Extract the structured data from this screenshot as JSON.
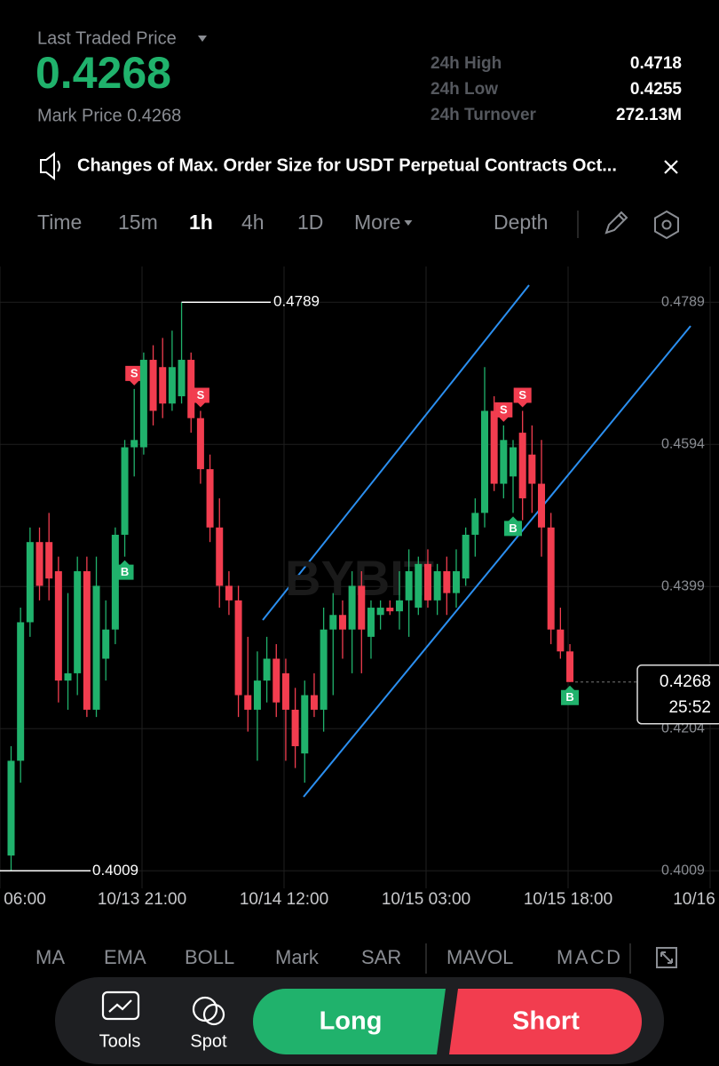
{
  "header": {
    "price_label": "Last Traded Price",
    "price": "0.4268",
    "mark_price": "Mark Price 0.4268",
    "stats": [
      {
        "label": "24h High",
        "value": "0.4718"
      },
      {
        "label": "24h Low",
        "value": "0.4255"
      },
      {
        "label": "24h Turnover",
        "value": "272.13M"
      }
    ]
  },
  "notice": "Changes  of Max. Order Size for USDT Perpetual Contracts Oct...",
  "tabs": [
    "Time",
    "15m",
    "1h",
    "4h",
    "1D",
    "More"
  ],
  "depth": "Depth",
  "chart": {
    "type": "candlestick",
    "watermark": "BYBIT",
    "ylim": [
      0.3985,
      0.4838
    ],
    "yticks": [
      0.4789,
      0.4594,
      0.4399,
      0.4204,
      0.4009
    ],
    "xlabels": [
      "06:00",
      "10/13 21:00",
      "10/14 12:00",
      "10/15 03:00",
      "10/15 18:00",
      "10/16"
    ],
    "up_color": "#20b26c",
    "down_color": "#f23d4f",
    "high": 0.4789,
    "low": 0.4009,
    "last": 0.4268,
    "countdown": "25:52",
    "candles": [
      {
        "o": 0.403,
        "h": 0.418,
        "l": 0.401,
        "c": 0.416
      },
      {
        "o": 0.416,
        "h": 0.437,
        "l": 0.413,
        "c": 0.435
      },
      {
        "o": 0.435,
        "h": 0.448,
        "l": 0.433,
        "c": 0.446
      },
      {
        "o": 0.446,
        "h": 0.448,
        "l": 0.438,
        "c": 0.44
      },
      {
        "o": 0.446,
        "h": 0.45,
        "l": 0.438,
        "c": 0.441
      },
      {
        "o": 0.442,
        "h": 0.444,
        "l": 0.424,
        "c": 0.427
      },
      {
        "o": 0.427,
        "h": 0.439,
        "l": 0.423,
        "c": 0.428
      },
      {
        "o": 0.428,
        "h": 0.444,
        "l": 0.425,
        "c": 0.442
      },
      {
        "o": 0.442,
        "h": 0.444,
        "l": 0.422,
        "c": 0.423
      },
      {
        "o": 0.423,
        "h": 0.444,
        "l": 0.422,
        "c": 0.44
      },
      {
        "o": 0.43,
        "h": 0.438,
        "l": 0.427,
        "c": 0.434
      },
      {
        "o": 0.434,
        "h": 0.448,
        "l": 0.432,
        "c": 0.447
      },
      {
        "o": 0.447,
        "h": 0.46,
        "l": 0.444,
        "c": 0.459,
        "signal": "B"
      },
      {
        "o": 0.459,
        "h": 0.467,
        "l": 0.455,
        "c": 0.46,
        "signal": "S"
      },
      {
        "o": 0.459,
        "h": 0.472,
        "l": 0.458,
        "c": 0.471
      },
      {
        "o": 0.471,
        "h": 0.473,
        "l": 0.462,
        "c": 0.464
      },
      {
        "o": 0.47,
        "h": 0.474,
        "l": 0.463,
        "c": 0.465
      },
      {
        "o": 0.465,
        "h": 0.475,
        "l": 0.464,
        "c": 0.47
      },
      {
        "o": 0.466,
        "h": 0.4789,
        "l": 0.465,
        "c": 0.471
      },
      {
        "o": 0.471,
        "h": 0.472,
        "l": 0.461,
        "c": 0.463
      },
      {
        "o": 0.463,
        "h": 0.464,
        "l": 0.454,
        "c": 0.456,
        "signal": "S"
      },
      {
        "o": 0.456,
        "h": 0.458,
        "l": 0.446,
        "c": 0.448
      },
      {
        "o": 0.448,
        "h": 0.452,
        "l": 0.437,
        "c": 0.44
      },
      {
        "o": 0.44,
        "h": 0.442,
        "l": 0.436,
        "c": 0.438
      },
      {
        "o": 0.438,
        "h": 0.44,
        "l": 0.422,
        "c": 0.425
      },
      {
        "o": 0.425,
        "h": 0.433,
        "l": 0.42,
        "c": 0.423
      },
      {
        "o": 0.423,
        "h": 0.431,
        "l": 0.416,
        "c": 0.427
      },
      {
        "o": 0.427,
        "h": 0.433,
        "l": 0.424,
        "c": 0.43
      },
      {
        "o": 0.43,
        "h": 0.432,
        "l": 0.422,
        "c": 0.424
      },
      {
        "o": 0.428,
        "h": 0.43,
        "l": 0.416,
        "c": 0.423
      },
      {
        "o": 0.423,
        "h": 0.426,
        "l": 0.415,
        "c": 0.418
      },
      {
        "o": 0.417,
        "h": 0.427,
        "l": 0.413,
        "c": 0.425
      },
      {
        "o": 0.425,
        "h": 0.428,
        "l": 0.422,
        "c": 0.423
      },
      {
        "o": 0.423,
        "h": 0.437,
        "l": 0.42,
        "c": 0.434
      },
      {
        "o": 0.434,
        "h": 0.439,
        "l": 0.425,
        "c": 0.436
      },
      {
        "o": 0.436,
        "h": 0.438,
        "l": 0.43,
        "c": 0.434
      },
      {
        "o": 0.434,
        "h": 0.442,
        "l": 0.428,
        "c": 0.44
      },
      {
        "o": 0.44,
        "h": 0.442,
        "l": 0.428,
        "c": 0.434
      },
      {
        "o": 0.433,
        "h": 0.438,
        "l": 0.43,
        "c": 0.437
      },
      {
        "o": 0.436,
        "h": 0.438,
        "l": 0.434,
        "c": 0.437
      },
      {
        "o": 0.437,
        "h": 0.438,
        "l": 0.436,
        "c": 0.4365
      },
      {
        "o": 0.4365,
        "h": 0.442,
        "l": 0.434,
        "c": 0.438
      },
      {
        "o": 0.438,
        "h": 0.445,
        "l": 0.433,
        "c": 0.442
      },
      {
        "o": 0.437,
        "h": 0.444,
        "l": 0.436,
        "c": 0.443
      },
      {
        "o": 0.443,
        "h": 0.445,
        "l": 0.437,
        "c": 0.438
      },
      {
        "o": 0.438,
        "h": 0.443,
        "l": 0.436,
        "c": 0.442
      },
      {
        "o": 0.442,
        "h": 0.444,
        "l": 0.436,
        "c": 0.439
      },
      {
        "o": 0.439,
        "h": 0.445,
        "l": 0.437,
        "c": 0.442
      },
      {
        "o": 0.441,
        "h": 0.448,
        "l": 0.44,
        "c": 0.447
      },
      {
        "o": 0.447,
        "h": 0.452,
        "l": 0.444,
        "c": 0.45
      },
      {
        "o": 0.45,
        "h": 0.47,
        "l": 0.448,
        "c": 0.464
      },
      {
        "o": 0.464,
        "h": 0.466,
        "l": 0.453,
        "c": 0.454
      },
      {
        "o": 0.454,
        "h": 0.462,
        "l": 0.452,
        "c": 0.46,
        "signal": "S"
      },
      {
        "o": 0.455,
        "h": 0.46,
        "l": 0.45,
        "c": 0.459,
        "signal": "B"
      },
      {
        "o": 0.461,
        "h": 0.464,
        "l": 0.449,
        "c": 0.452,
        "signal": "S"
      },
      {
        "o": 0.458,
        "h": 0.462,
        "l": 0.45,
        "c": 0.454
      },
      {
        "o": 0.454,
        "h": 0.46,
        "l": 0.444,
        "c": 0.448
      },
      {
        "o": 0.448,
        "h": 0.45,
        "l": 0.432,
        "c": 0.434
      },
      {
        "o": 0.434,
        "h": 0.437,
        "l": 0.43,
        "c": 0.431
      },
      {
        "o": 0.431,
        "h": 0.432,
        "l": 0.4268,
        "c": 0.4268,
        "signal": "B"
      }
    ]
  },
  "indicators": [
    "MA",
    "EMA",
    "BOLL",
    "Mark",
    "SAR",
    "MAVOL",
    "MACD"
  ],
  "bottom": {
    "tools": "Tools",
    "spot": "Spot",
    "long": "Long",
    "short": "Short"
  }
}
